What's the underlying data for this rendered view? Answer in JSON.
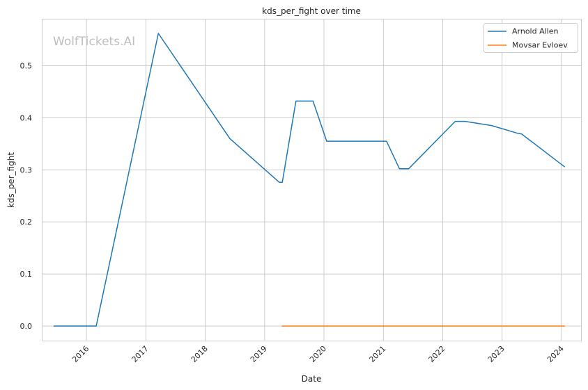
{
  "chart_data": {
    "type": "line",
    "title": "kds_per_fight over time",
    "xlabel": "Date",
    "ylabel": "kds_per_fight",
    "watermark": "WolfTickets.AI",
    "xlim": [
      "2015-04-01",
      "2024-05-01"
    ],
    "ylim": [
      -0.028,
      0.59
    ],
    "x_ticks": [
      "2016-01-01",
      "2017-01-01",
      "2018-01-01",
      "2019-01-01",
      "2020-01-01",
      "2021-01-01",
      "2022-01-01",
      "2023-01-01",
      "2024-01-01"
    ],
    "x_tick_labels": [
      "2016",
      "2017",
      "2018",
      "2019",
      "2020",
      "2021",
      "2022",
      "2023",
      "2024"
    ],
    "y_ticks": [
      0.0,
      0.1,
      0.2,
      0.3,
      0.4,
      0.5
    ],
    "y_tick_labels": [
      "0.0",
      "0.1",
      "0.2",
      "0.3",
      "0.4",
      "0.5"
    ],
    "grid": true,
    "legend_position": "top-right",
    "series": [
      {
        "name": "Arnold Allen",
        "color": "#1f77b4",
        "points": [
          [
            "2015-06-15",
            0.0
          ],
          [
            "2016-03-01",
            0.0
          ],
          [
            "2017-03-18",
            0.562
          ],
          [
            "2018-06-01",
            0.36
          ],
          [
            "2019-04-01",
            0.276
          ],
          [
            "2019-04-20",
            0.276
          ],
          [
            "2019-07-13",
            0.432
          ],
          [
            "2019-10-26",
            0.432
          ],
          [
            "2020-01-18",
            0.355
          ],
          [
            "2021-01-20",
            0.355
          ],
          [
            "2021-04-10",
            0.302
          ],
          [
            "2021-06-05",
            0.302
          ],
          [
            "2022-03-19",
            0.393
          ],
          [
            "2022-05-20",
            0.393
          ],
          [
            "2022-10-29",
            0.385
          ],
          [
            "2023-04-08",
            0.37
          ],
          [
            "2023-05-01",
            0.369
          ],
          [
            "2024-01-20",
            0.306
          ]
        ]
      },
      {
        "name": "Movsar Evloev",
        "color": "#ff7f0e",
        "points": [
          [
            "2019-04-20",
            0.0
          ],
          [
            "2024-01-20",
            0.0
          ]
        ]
      }
    ]
  }
}
